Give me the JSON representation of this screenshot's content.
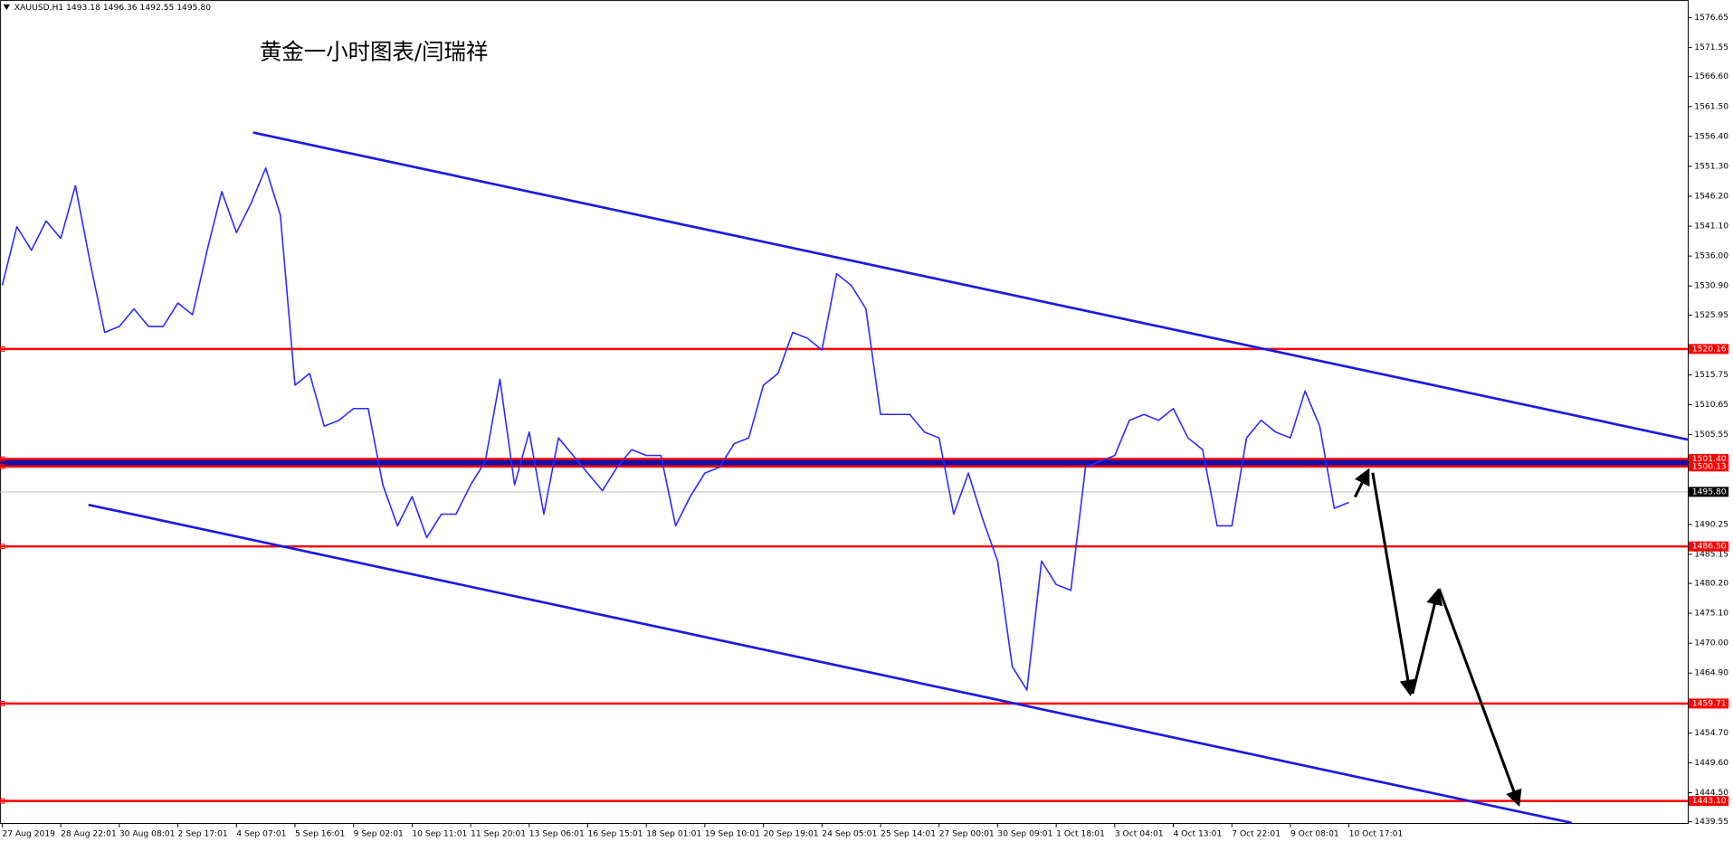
{
  "chart_data": {
    "type": "line",
    "header": "XAUUSD,H1  1493.18 1496.36 1492.55 1495.80",
    "title": "黄金一小时图表/闫瑞祥",
    "color": "#2b2bff",
    "categories": [
      "27 Aug 2019",
      null,
      null,
      null,
      "28 Aug 22:01",
      null,
      null,
      null,
      "30 Aug 08:01",
      null,
      null,
      null,
      "2 Sep 17:01",
      null,
      null,
      null,
      "4 Sep 07:01",
      null,
      null,
      null,
      "5 Sep 16:01",
      null,
      null,
      null,
      "9 Sep 02:01",
      null,
      null,
      null,
      "10 Sep 11:01",
      null,
      null,
      null,
      "11 Sep 20:01",
      null,
      null,
      null,
      "13 Sep 06:01",
      null,
      null,
      null,
      "16 Sep 15:01",
      null,
      null,
      null,
      "18 Sep 01:01",
      null,
      null,
      null,
      "19 Sep 10:01",
      null,
      null,
      null,
      "20 Sep 19:01",
      null,
      null,
      null,
      "24 Sep 05:01",
      null,
      null,
      null,
      "25 Sep 14:01",
      null,
      null,
      null,
      "27 Sep 00:01",
      null,
      null,
      null,
      "30 Sep 09:01",
      null,
      null,
      null,
      "1 Oct 18:01",
      null,
      null,
      null,
      "3 Oct 04:01",
      null,
      null,
      null,
      "4 Oct 13:01",
      null,
      null,
      null,
      "7 Oct 22:01",
      null,
      null,
      null,
      "9 Oct 08:01",
      null,
      null,
      null,
      "10 Oct 17:01",
      null,
      null,
      null
    ],
    "values": [
      1531,
      1541,
      1537,
      1542,
      1539,
      1548,
      1535,
      1523,
      1524,
      1527,
      1524,
      1524,
      1528,
      1526,
      1537,
      1547,
      1540,
      1545,
      1551,
      1543,
      1514,
      1516,
      1507,
      1508,
      1510,
      1510,
      1497,
      1490,
      1495,
      1488,
      1492,
      1492,
      1497,
      1501,
      1515,
      1497,
      1506,
      1492,
      1505,
      1502,
      1499,
      1496,
      1500,
      1503,
      1502,
      1502,
      1490,
      1495,
      1499,
      1500,
      1504,
      1505,
      1514,
      1516,
      1523,
      1522,
      1520,
      1533,
      1531,
      1527,
      1509,
      1509,
      1509,
      1506,
      1505,
      1492,
      1499,
      1491,
      1484,
      1466,
      1462,
      1484,
      1480,
      1479,
      1500,
      1501,
      1502,
      1508,
      1509,
      1508,
      1510,
      1505,
      1503,
      1490,
      1490,
      1505,
      1508,
      1506,
      1505,
      1513,
      1507,
      1493,
      1494,
      null,
      null,
      null
    ],
    "ylim": [
      1439.36,
      1579.66
    ],
    "yticks": [
      {
        "value": 1576.65,
        "label": "1576.65"
      },
      {
        "value": 1571.55,
        "label": "1571.55"
      },
      {
        "value": 1566.6,
        "label": "1566.60"
      },
      {
        "value": 1561.5,
        "label": "1561.50"
      },
      {
        "value": 1556.4,
        "label": "1556.40"
      },
      {
        "value": 1551.3,
        "label": "1551.30"
      },
      {
        "value": 1546.2,
        "label": "1546.20"
      },
      {
        "value": 1541.1,
        "label": "1541.10"
      },
      {
        "value": 1536,
        "label": "1536.00"
      },
      {
        "value": 1530.9,
        "label": "1530.90"
      },
      {
        "value": 1525.95,
        "label": "1525.95"
      },
      {
        "value": 1515.75,
        "label": "1515.75"
      },
      {
        "value": 1510.65,
        "label": "1510.65"
      },
      {
        "value": 1505.55,
        "label": "1505.55"
      },
      {
        "value": 1490.25,
        "label": "1490.25"
      },
      {
        "value": 1485.15,
        "label": "1485.15"
      },
      {
        "value": 1480.2,
        "label": "1480.20"
      },
      {
        "value": 1475.1,
        "label": "1475.10"
      },
      {
        "value": 1470,
        "label": "1470.00"
      },
      {
        "value": 1464.9,
        "label": "1464.90"
      },
      {
        "value": 1454.7,
        "label": "1454.70"
      },
      {
        "value": 1449.6,
        "label": "1449.60"
      },
      {
        "value": 1444.5,
        "label": "1444.50"
      },
      {
        "value": 1439.55,
        "label": "1439.55"
      }
    ],
    "levels": [
      {
        "value": 1520.16,
        "label": "1520.16"
      },
      {
        "value": 1501.4,
        "label": "1501.40"
      },
      {
        "value": 1500.13,
        "label": "1500.13"
      },
      {
        "value": 1486.5,
        "label": "1486.50"
      },
      {
        "value": 1459.71,
        "label": "1459.71"
      },
      {
        "value": 1443.1,
        "label": "1443.10"
      }
    ],
    "level_color": "#ff0000",
    "current_price": {
      "value": 1495.8,
      "label": "1495.80"
    }
  }
}
